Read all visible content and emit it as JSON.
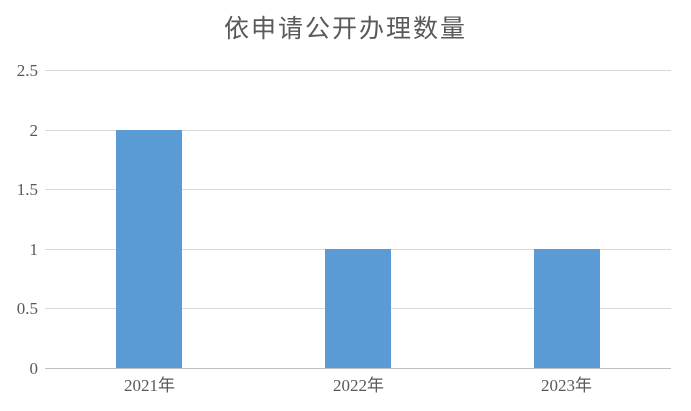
{
  "chart_data": {
    "type": "bar",
    "title": "依申请公开办理数量",
    "categories": [
      "2021年",
      "2022年",
      "2023年"
    ],
    "values": [
      2,
      1,
      1
    ],
    "xlabel": "",
    "ylabel": "",
    "ylim": [
      0,
      2.5
    ],
    "yticks": [
      0,
      0.5,
      1,
      1.5,
      2,
      2.5
    ],
    "ytick_labels": [
      "0",
      "0.5",
      "1",
      "1.5",
      "2",
      "2.5"
    ],
    "grid": "horizontal",
    "legend": "none",
    "colors": {
      "bar": "#5b9bd5",
      "gridline": "#d9d9d9",
      "axis_line": "#bfbfbf",
      "tick_label": "#595959",
      "title": "#595959",
      "background": "#ffffff"
    }
  }
}
